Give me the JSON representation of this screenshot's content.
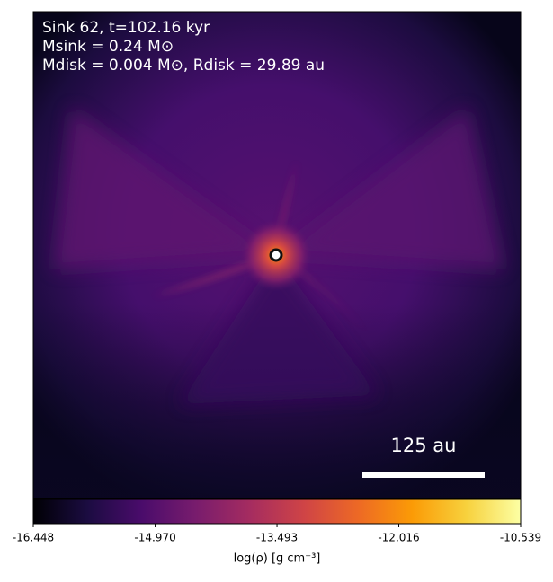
{
  "chart_data": {
    "type": "image",
    "annotations": [
      "Sink 62, t=102.16 kyr",
      "Msink = 0.24 M⊙",
      "Mdisk = 0.004 M⊙, Rdisk = 29.89 au"
    ],
    "scale_bar_label": "125 au",
    "colormap": "inferno",
    "colorbar_label": "log(ρ) [g cm⁻³]",
    "clim": [
      -16.448,
      -10.539
    ],
    "cticks": [
      -16.448,
      {
        "value": -14.97,
        "label": "-14.970"
      },
      -13.493,
      -12.016,
      -10.539
    ]
  }
}
